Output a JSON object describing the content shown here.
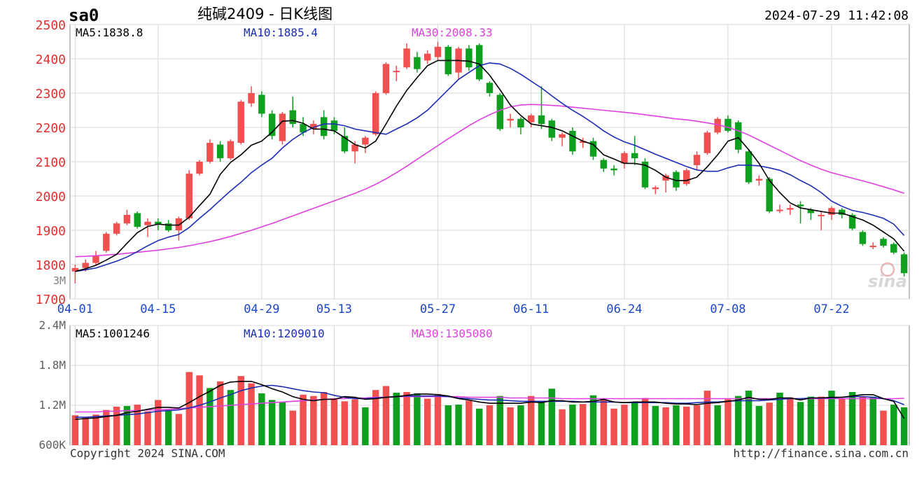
{
  "header": {
    "symbol": "sa0",
    "title": "纯碱2409 - 日K线图",
    "timestamp": "2024-07-29 11:42:08"
  },
  "footer": {
    "copyright": "Copyright 2024 SINA.COM",
    "url": "http://finance.sina.com.cn"
  },
  "watermark": "sina",
  "colors": {
    "up": "#f05050",
    "down": "#10a020",
    "ma5": "#000000",
    "ma10": "#1c2db3",
    "ma30": "#e040e0",
    "axis_label": "#1a46c8",
    "price_label": "#e03030",
    "grid": "#d8d8d8"
  },
  "chart_data": [
    {
      "type": "candlestick",
      "title": "纯碱2409 - 日K线图",
      "ylim": [
        1700,
        2500
      ],
      "yticks": [
        1700,
        1800,
        1900,
        2000,
        2100,
        2200,
        2300,
        2400,
        2500
      ],
      "xticks": [
        {
          "i": 0,
          "label": "04-01"
        },
        {
          "i": 8,
          "label": "04-15"
        },
        {
          "i": 18,
          "label": "04-29"
        },
        {
          "i": 25,
          "label": "05-13"
        },
        {
          "i": 35,
          "label": "05-27"
        },
        {
          "i": 44,
          "label": "06-11"
        },
        {
          "i": 53,
          "label": "06-24"
        },
        {
          "i": 63,
          "label": "07-08"
        },
        {
          "i": 73,
          "label": "07-22"
        }
      ],
      "volume_axis_label": "3M",
      "ma_legend": {
        "ma5": "MA5:1838.8",
        "ma10": "MA10:1885.4",
        "ma30": "MA30:2008.33"
      },
      "candles": [
        [
          1780,
          1790,
          1745,
          1800
        ],
        [
          1790,
          1805,
          1780,
          1815
        ],
        [
          1805,
          1825,
          1800,
          1840
        ],
        [
          1840,
          1890,
          1835,
          1895
        ],
        [
          1890,
          1920,
          1885,
          1925
        ],
        [
          1920,
          1945,
          1915,
          1960
        ],
        [
          1950,
          1910,
          1905,
          1955
        ],
        [
          1915,
          1925,
          1880,
          1935
        ],
        [
          1925,
          1918,
          1900,
          1935
        ],
        [
          1920,
          1900,
          1895,
          1930
        ],
        [
          1900,
          1935,
          1870,
          1940
        ],
        [
          1935,
          2065,
          1930,
          2075
        ],
        [
          2065,
          2100,
          2060,
          2105
        ],
        [
          2100,
          2155,
          2095,
          2165
        ],
        [
          2150,
          2110,
          2100,
          2160
        ],
        [
          2110,
          2160,
          2105,
          2165
        ],
        [
          2155,
          2275,
          2150,
          2280
        ],
        [
          2270,
          2300,
          2260,
          2320
        ],
        [
          2295,
          2240,
          2230,
          2305
        ],
        [
          2240,
          2175,
          2165,
          2250
        ],
        [
          2160,
          2240,
          2150,
          2245
        ],
        [
          2250,
          2210,
          2200,
          2290
        ],
        [
          2210,
          2185,
          2175,
          2230
        ],
        [
          2195,
          2210,
          2180,
          2220
        ],
        [
          2230,
          2175,
          2165,
          2250
        ],
        [
          2220,
          2190,
          2180,
          2230
        ],
        [
          2175,
          2130,
          2125,
          2200
        ],
        [
          2130,
          2150,
          2095,
          2160
        ],
        [
          2150,
          2170,
          2125,
          2175
        ],
        [
          2180,
          2300,
          2175,
          2305
        ],
        [
          2300,
          2385,
          2295,
          2390
        ],
        [
          2365,
          2365,
          2335,
          2380
        ],
        [
          2375,
          2430,
          2370,
          2445
        ],
        [
          2405,
          2370,
          2360,
          2420
        ],
        [
          2395,
          2415,
          2385,
          2425
        ],
        [
          2405,
          2435,
          2395,
          2450
        ],
        [
          2435,
          2355,
          2350,
          2440
        ],
        [
          2360,
          2430,
          2340,
          2435
        ],
        [
          2430,
          2375,
          2365,
          2440
        ],
        [
          2440,
          2340,
          2335,
          2445
        ],
        [
          2330,
          2300,
          2290,
          2335
        ],
        [
          2295,
          2195,
          2190,
          2300
        ],
        [
          2220,
          2225,
          2200,
          2240
        ],
        [
          2225,
          2200,
          2180,
          2230
        ],
        [
          2215,
          2235,
          2200,
          2240
        ],
        [
          2235,
          2210,
          2195,
          2320
        ],
        [
          2220,
          2170,
          2160,
          2225
        ],
        [
          2170,
          2180,
          2145,
          2185
        ],
        [
          2190,
          2130,
          2120,
          2200
        ],
        [
          2155,
          2160,
          2140,
          2170
        ],
        [
          2160,
          2115,
          2105,
          2170
        ],
        [
          2105,
          2080,
          2070,
          2110
        ],
        [
          2080,
          2075,
          2060,
          2090
        ],
        [
          2095,
          2125,
          2080,
          2130
        ],
        [
          2125,
          2110,
          2090,
          2175
        ],
        [
          2100,
          2025,
          2020,
          2110
        ],
        [
          2020,
          2025,
          2005,
          2030
        ],
        [
          2045,
          2060,
          2010,
          2065
        ],
        [
          2070,
          2025,
          2015,
          2075
        ],
        [
          2035,
          2075,
          2030,
          2080
        ],
        [
          2090,
          2120,
          2075,
          2130
        ],
        [
          2125,
          2185,
          2120,
          2190
        ],
        [
          2185,
          2225,
          2180,
          2230
        ],
        [
          2225,
          2190,
          2185,
          2235
        ],
        [
          2215,
          2135,
          2125,
          2220
        ],
        [
          2130,
          2040,
          2035,
          2135
        ],
        [
          2045,
          2050,
          2030,
          2060
        ],
        [
          2050,
          1955,
          1950,
          2055
        ],
        [
          1960,
          1960,
          1950,
          1975
        ],
        [
          1960,
          1965,
          1945,
          1975
        ],
        [
          1975,
          1970,
          1920,
          1985
        ],
        [
          1960,
          1950,
          1930,
          1965
        ],
        [
          1945,
          1945,
          1900,
          1955
        ],
        [
          1945,
          1965,
          1930,
          1970
        ],
        [
          1960,
          1945,
          1935,
          1965
        ],
        [
          1945,
          1905,
          1900,
          1950
        ],
        [
          1895,
          1860,
          1855,
          1900
        ],
        [
          1855,
          1855,
          1845,
          1865
        ],
        [
          1875,
          1855,
          1850,
          1880
        ],
        [
          1860,
          1835,
          1830,
          1865
        ],
        [
          1830,
          1775,
          1765,
          1835
        ]
      ],
      "ma5": [
        1780,
        1788,
        1798,
        1813,
        1830,
        1862,
        1893,
        1911,
        1918,
        1915,
        1915,
        1938,
        1972,
        2005,
        2063,
        2098,
        2120,
        2148,
        2160,
        2186,
        2218,
        2220,
        2212,
        2195,
        2195,
        2190,
        2170,
        2150,
        2140,
        2160,
        2210,
        2262,
        2308,
        2345,
        2380,
        2395,
        2395,
        2395,
        2393,
        2385,
        2352,
        2310,
        2265,
        2235,
        2210,
        2205,
        2200,
        2190,
        2175,
        2160,
        2150,
        2120,
        2108,
        2095,
        2095,
        2090,
        2075,
        2055,
        2045,
        2045,
        2055,
        2085,
        2120,
        2160,
        2170,
        2135,
        2095,
        2045,
        2010,
        1980,
        1965,
        1960,
        1955,
        1950,
        1950,
        1940,
        1930,
        1915,
        1895,
        1875,
        1839
      ],
      "ma10": [
        1780,
        1785,
        1790,
        1800,
        1810,
        1822,
        1838,
        1855,
        1870,
        1880,
        1888,
        1908,
        1935,
        1960,
        1988,
        2015,
        2040,
        2068,
        2090,
        2110,
        2140,
        2165,
        2185,
        2200,
        2210,
        2210,
        2205,
        2195,
        2190,
        2185,
        2180,
        2195,
        2210,
        2228,
        2250,
        2280,
        2310,
        2340,
        2360,
        2380,
        2388,
        2385,
        2372,
        2355,
        2335,
        2315,
        2292,
        2270,
        2250,
        2232,
        2212,
        2190,
        2172,
        2158,
        2148,
        2135,
        2122,
        2110,
        2098,
        2086,
        2076,
        2072,
        2072,
        2082,
        2090,
        2090,
        2088,
        2082,
        2075,
        2062,
        2045,
        2030,
        2010,
        1985,
        1970,
        1958,
        1952,
        1944,
        1935,
        1918,
        1885
      ],
      "ma30": [
        1823,
        1824,
        1826,
        1828,
        1830,
        1833,
        1836,
        1839,
        1842,
        1846,
        1850,
        1855,
        1861,
        1867,
        1874,
        1882,
        1891,
        1900,
        1910,
        1920,
        1931,
        1942,
        1953,
        1964,
        1975,
        1986,
        1997,
        2008,
        2020,
        2034,
        2050,
        2068,
        2087,
        2107,
        2127,
        2147,
        2167,
        2186,
        2205,
        2222,
        2237,
        2250,
        2260,
        2265,
        2267,
        2266,
        2264,
        2262,
        2259,
        2256,
        2253,
        2250,
        2247,
        2244,
        2241,
        2237,
        2233,
        2229,
        2225,
        2222,
        2218,
        2213,
        2208,
        2200,
        2190,
        2178,
        2163,
        2148,
        2133,
        2118,
        2103,
        2090,
        2078,
        2068,
        2060,
        2052,
        2044,
        2036,
        2027,
        2018,
        2008
      ]
    },
    {
      "type": "bar",
      "title": "",
      "ylim": [
        600000,
        2400000
      ],
      "ytick_labels": [
        "2.4M",
        "1.8M",
        "1.2M",
        "600K"
      ],
      "ma_legend": {
        "ma5": "MA5:1001246",
        "ma10": "MA10:1209010",
        "ma30": "MA30:1305080"
      },
      "volumes": [
        1050000,
        1020000,
        1060000,
        1130000,
        1180000,
        1190000,
        1210000,
        1110000,
        1280000,
        1130000,
        1070000,
        1700000,
        1650000,
        1460000,
        1560000,
        1430000,
        1640000,
        1530000,
        1380000,
        1280000,
        1250000,
        1120000,
        1360000,
        1340000,
        1400000,
        1300000,
        1260000,
        1290000,
        1170000,
        1430000,
        1490000,
        1390000,
        1400000,
        1380000,
        1300000,
        1370000,
        1200000,
        1210000,
        1270000,
        1150000,
        1200000,
        1340000,
        1170000,
        1200000,
        1340000,
        1260000,
        1450000,
        1140000,
        1210000,
        1220000,
        1350000,
        1290000,
        1150000,
        1210000,
        1240000,
        1310000,
        1190000,
        1170000,
        1200000,
        1180000,
        1200000,
        1420000,
        1200000,
        1290000,
        1340000,
        1420000,
        1190000,
        1240000,
        1390000,
        1320000,
        1250000,
        1330000,
        1330000,
        1420000,
        1300000,
        1400000,
        1330000,
        1330000,
        1120000,
        1210000,
        1170000
      ],
      "vol_up": [
        true,
        true,
        true,
        true,
        true,
        false,
        true,
        true,
        true,
        false,
        true,
        true,
        true,
        false,
        true,
        false,
        true,
        true,
        false,
        false,
        false,
        true,
        true,
        true,
        true,
        true,
        true,
        true,
        false,
        true,
        true,
        false,
        true,
        false,
        true,
        true,
        false,
        false,
        true,
        false,
        true,
        false,
        true,
        false,
        true,
        false,
        false,
        true,
        false,
        true,
        false,
        true,
        true,
        true,
        false,
        true,
        false,
        true,
        false,
        true,
        true,
        true,
        false,
        true,
        false,
        false,
        false,
        true,
        false,
        true,
        false,
        false,
        true,
        false,
        true,
        false,
        true,
        false,
        true,
        false,
        false
      ],
      "vol_ma5": [
        990000,
        1000000,
        1010000,
        1030000,
        1050000,
        1090000,
        1110000,
        1140000,
        1170000,
        1170000,
        1160000,
        1240000,
        1330000,
        1410000,
        1500000,
        1550000,
        1560000,
        1560000,
        1510000,
        1450000,
        1400000,
        1330000,
        1290000,
        1270000,
        1290000,
        1290000,
        1330000,
        1320000,
        1290000,
        1300000,
        1320000,
        1330000,
        1350000,
        1370000,
        1370000,
        1360000,
        1340000,
        1300000,
        1280000,
        1250000,
        1230000,
        1230000,
        1230000,
        1230000,
        1250000,
        1240000,
        1270000,
        1270000,
        1250000,
        1250000,
        1260000,
        1290000,
        1250000,
        1240000,
        1250000,
        1250000,
        1250000,
        1230000,
        1220000,
        1220000,
        1210000,
        1230000,
        1240000,
        1260000,
        1280000,
        1320000,
        1290000,
        1290000,
        1310000,
        1310000,
        1280000,
        1310000,
        1310000,
        1320000,
        1320000,
        1340000,
        1360000,
        1360000,
        1300000,
        1260000,
        1001246
      ],
      "vol_ma10": [
        1020000,
        1020000,
        1030000,
        1040000,
        1050000,
        1060000,
        1070000,
        1090000,
        1110000,
        1120000,
        1130000,
        1160000,
        1200000,
        1250000,
        1310000,
        1360000,
        1420000,
        1460000,
        1490000,
        1500000,
        1480000,
        1450000,
        1420000,
        1400000,
        1390000,
        1350000,
        1320000,
        1300000,
        1300000,
        1310000,
        1320000,
        1330000,
        1340000,
        1340000,
        1340000,
        1340000,
        1330000,
        1310000,
        1300000,
        1290000,
        1280000,
        1280000,
        1270000,
        1260000,
        1260000,
        1260000,
        1260000,
        1260000,
        1260000,
        1250000,
        1250000,
        1250000,
        1250000,
        1240000,
        1240000,
        1240000,
        1240000,
        1240000,
        1230000,
        1230000,
        1240000,
        1250000,
        1250000,
        1260000,
        1270000,
        1270000,
        1270000,
        1280000,
        1290000,
        1300000,
        1300000,
        1310000,
        1310000,
        1310000,
        1320000,
        1330000,
        1330000,
        1320000,
        1300000,
        1270000,
        1209010
      ],
      "vol_ma30": [
        1100000,
        1100000,
        1100000,
        1110000,
        1110000,
        1120000,
        1120000,
        1130000,
        1130000,
        1140000,
        1150000,
        1160000,
        1170000,
        1180000,
        1190000,
        1200000,
        1210000,
        1220000,
        1230000,
        1240000,
        1250000,
        1260000,
        1270000,
        1280000,
        1290000,
        1300000,
        1300000,
        1310000,
        1310000,
        1320000,
        1320000,
        1330000,
        1330000,
        1330000,
        1330000,
        1330000,
        1330000,
        1330000,
        1320000,
        1320000,
        1320000,
        1320000,
        1310000,
        1310000,
        1310000,
        1310000,
        1310000,
        1300000,
        1300000,
        1300000,
        1300000,
        1300000,
        1300000,
        1300000,
        1300000,
        1300000,
        1300000,
        1300000,
        1300000,
        1300000,
        1300000,
        1300000,
        1300000,
        1300000,
        1300000,
        1300000,
        1300000,
        1300000,
        1300000,
        1300000,
        1300000,
        1300000,
        1300000,
        1300000,
        1300000,
        1300000,
        1300000,
        1300000,
        1300000,
        1300000,
        1305080
      ]
    }
  ]
}
